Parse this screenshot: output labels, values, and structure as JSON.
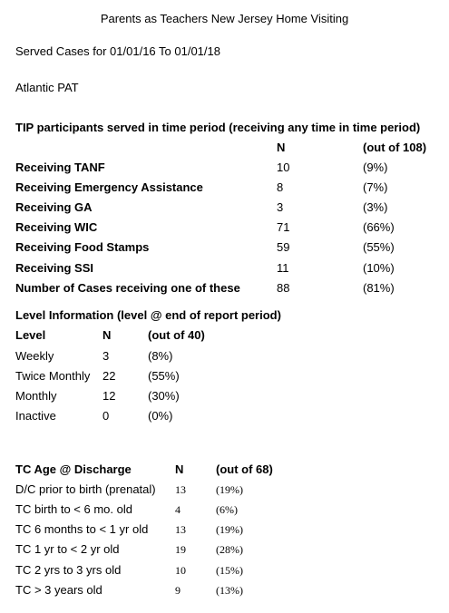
{
  "header": {
    "title": "Parents as Teachers New Jersey Home Visiting",
    "date_range": "Served Cases for 01/01/16 To 01/01/18",
    "site": "Atlantic PAT"
  },
  "tip": {
    "heading": "TIP participants served in time period (receiving any time in time period)",
    "col_n": "N",
    "col_out": "(out of 108)",
    "rows": [
      {
        "label": "Receiving TANF",
        "n": "10",
        "pct": "(9%)"
      },
      {
        "label": "Receiving Emergency Assistance",
        "n": "8",
        "pct": "(7%)"
      },
      {
        "label": "Receiving GA",
        "n": "3",
        "pct": "(3%)"
      },
      {
        "label": "Receiving WIC",
        "n": "71",
        "pct": "(66%)"
      },
      {
        "label": "Receiving Food Stamps",
        "n": "59",
        "pct": "(55%)"
      },
      {
        "label": "Receiving SSI",
        "n": "11",
        "pct": "(10%)"
      },
      {
        "label": "Number of Cases receiving one of these",
        "n": "88",
        "pct": "(81%)"
      }
    ]
  },
  "level": {
    "heading": "Level Information (level @ end of report period)",
    "col_level": "Level",
    "col_n": "N",
    "col_out": "(out of 40)",
    "rows": [
      {
        "label": "Weekly",
        "n": "3",
        "pct": "(8%)"
      },
      {
        "label": "Twice Monthly",
        "n": "22",
        "pct": "(55%)"
      },
      {
        "label": "Monthly",
        "n": "12",
        "pct": "(30%)"
      },
      {
        "label": "Inactive",
        "n": "0",
        "pct": "(0%)"
      }
    ]
  },
  "age": {
    "col_label": "TC Age @ Discharge",
    "col_n": "N",
    "col_out": "(out of 68)",
    "rows": [
      {
        "label": "D/C prior to birth (prenatal)",
        "n": "13",
        "pct": "(19%)"
      },
      {
        "label": "TC birth to < 6 mo. old",
        "n": "4",
        "pct": "(6%)"
      },
      {
        "label": "TC 6 months to < 1 yr old",
        "n": "13",
        "pct": "(19%)"
      },
      {
        "label": "TC 1 yr to < 2 yr old",
        "n": "19",
        "pct": "(28%)"
      },
      {
        "label": "TC 2 yrs to 3 yrs old",
        "n": "10",
        "pct": "(15%)"
      },
      {
        "label": "TC > 3 years old",
        "n": "9",
        "pct": "(13%)"
      }
    ]
  }
}
